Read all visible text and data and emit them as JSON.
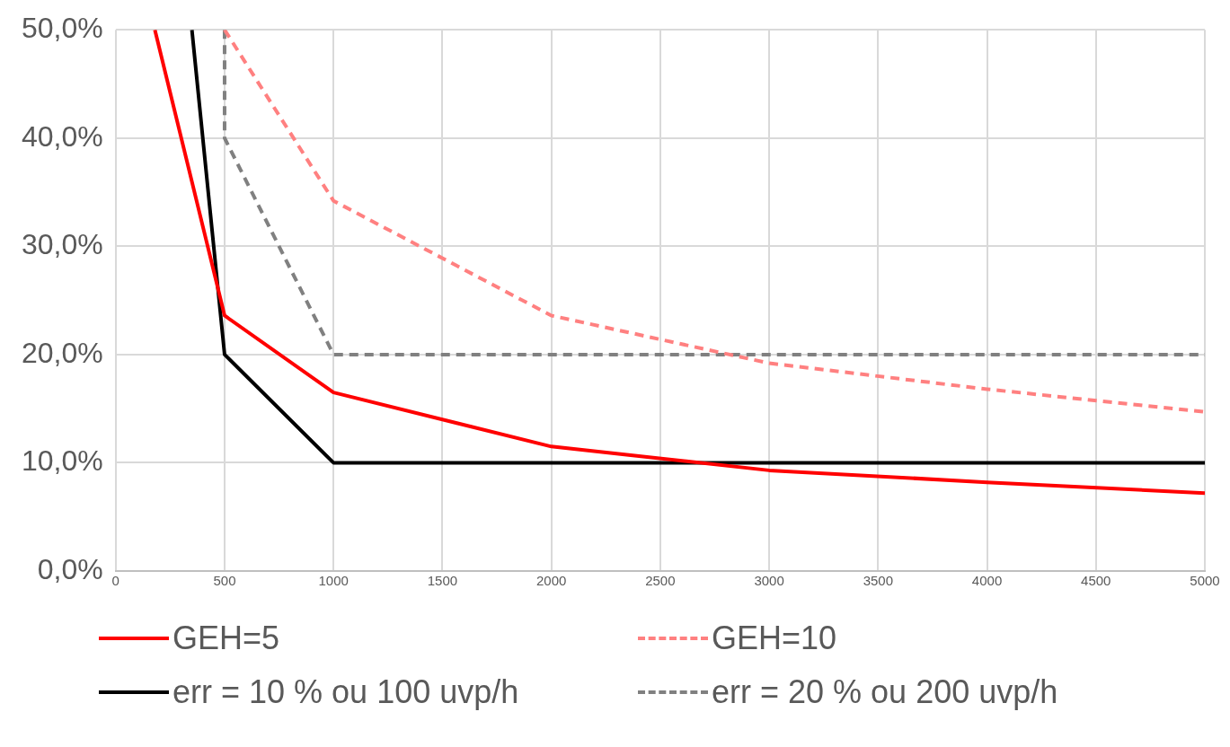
{
  "chart_data": {
    "type": "line",
    "xlim": [
      0,
      5000
    ],
    "xticks": [
      0,
      500,
      1000,
      1500,
      2000,
      2500,
      3000,
      3500,
      4000,
      4500,
      5000
    ],
    "ylim": [
      0,
      50
    ],
    "yticks": [
      {
        "value": 0,
        "label": "0,0%"
      },
      {
        "value": 10,
        "label": "10,0%"
      },
      {
        "value": 20,
        "label": "20,0%"
      },
      {
        "value": 30,
        "label": "30,0%"
      },
      {
        "value": 40,
        "label": "40,0%"
      },
      {
        "value": 50,
        "label": "50,0%"
      }
    ],
    "grid": true,
    "legend": "bottom",
    "marker": "none",
    "series": [
      {
        "name": "GEH=5",
        "color": "#ff0000",
        "line_style": "solid",
        "x": [
          180,
          500,
          1000,
          2000,
          3000,
          4000,
          5000
        ],
        "values": [
          50,
          23.6,
          16.5,
          11.5,
          9.3,
          8.2,
          7.2
        ]
      },
      {
        "name": "GEH=10",
        "color": "#ff8080",
        "line_style": "dashed",
        "x": [
          500,
          1000,
          2000,
          3000,
          4000,
          5000
        ],
        "values": [
          50,
          34.2,
          23.6,
          19.2,
          16.8,
          14.7
        ]
      },
      {
        "name": "err = 10 % ou 100 uvp/h",
        "color": "#000000",
        "line_style": "solid",
        "x": [
          350,
          500,
          1000,
          5000
        ],
        "values": [
          50,
          20,
          10,
          10
        ]
      },
      {
        "name": "err = 20 % ou 200 uvp/h",
        "color": "#808080",
        "line_style": "dashed",
        "x": [
          500,
          500,
          1000,
          5000
        ],
        "values": [
          50,
          40,
          20,
          20
        ]
      }
    ]
  }
}
